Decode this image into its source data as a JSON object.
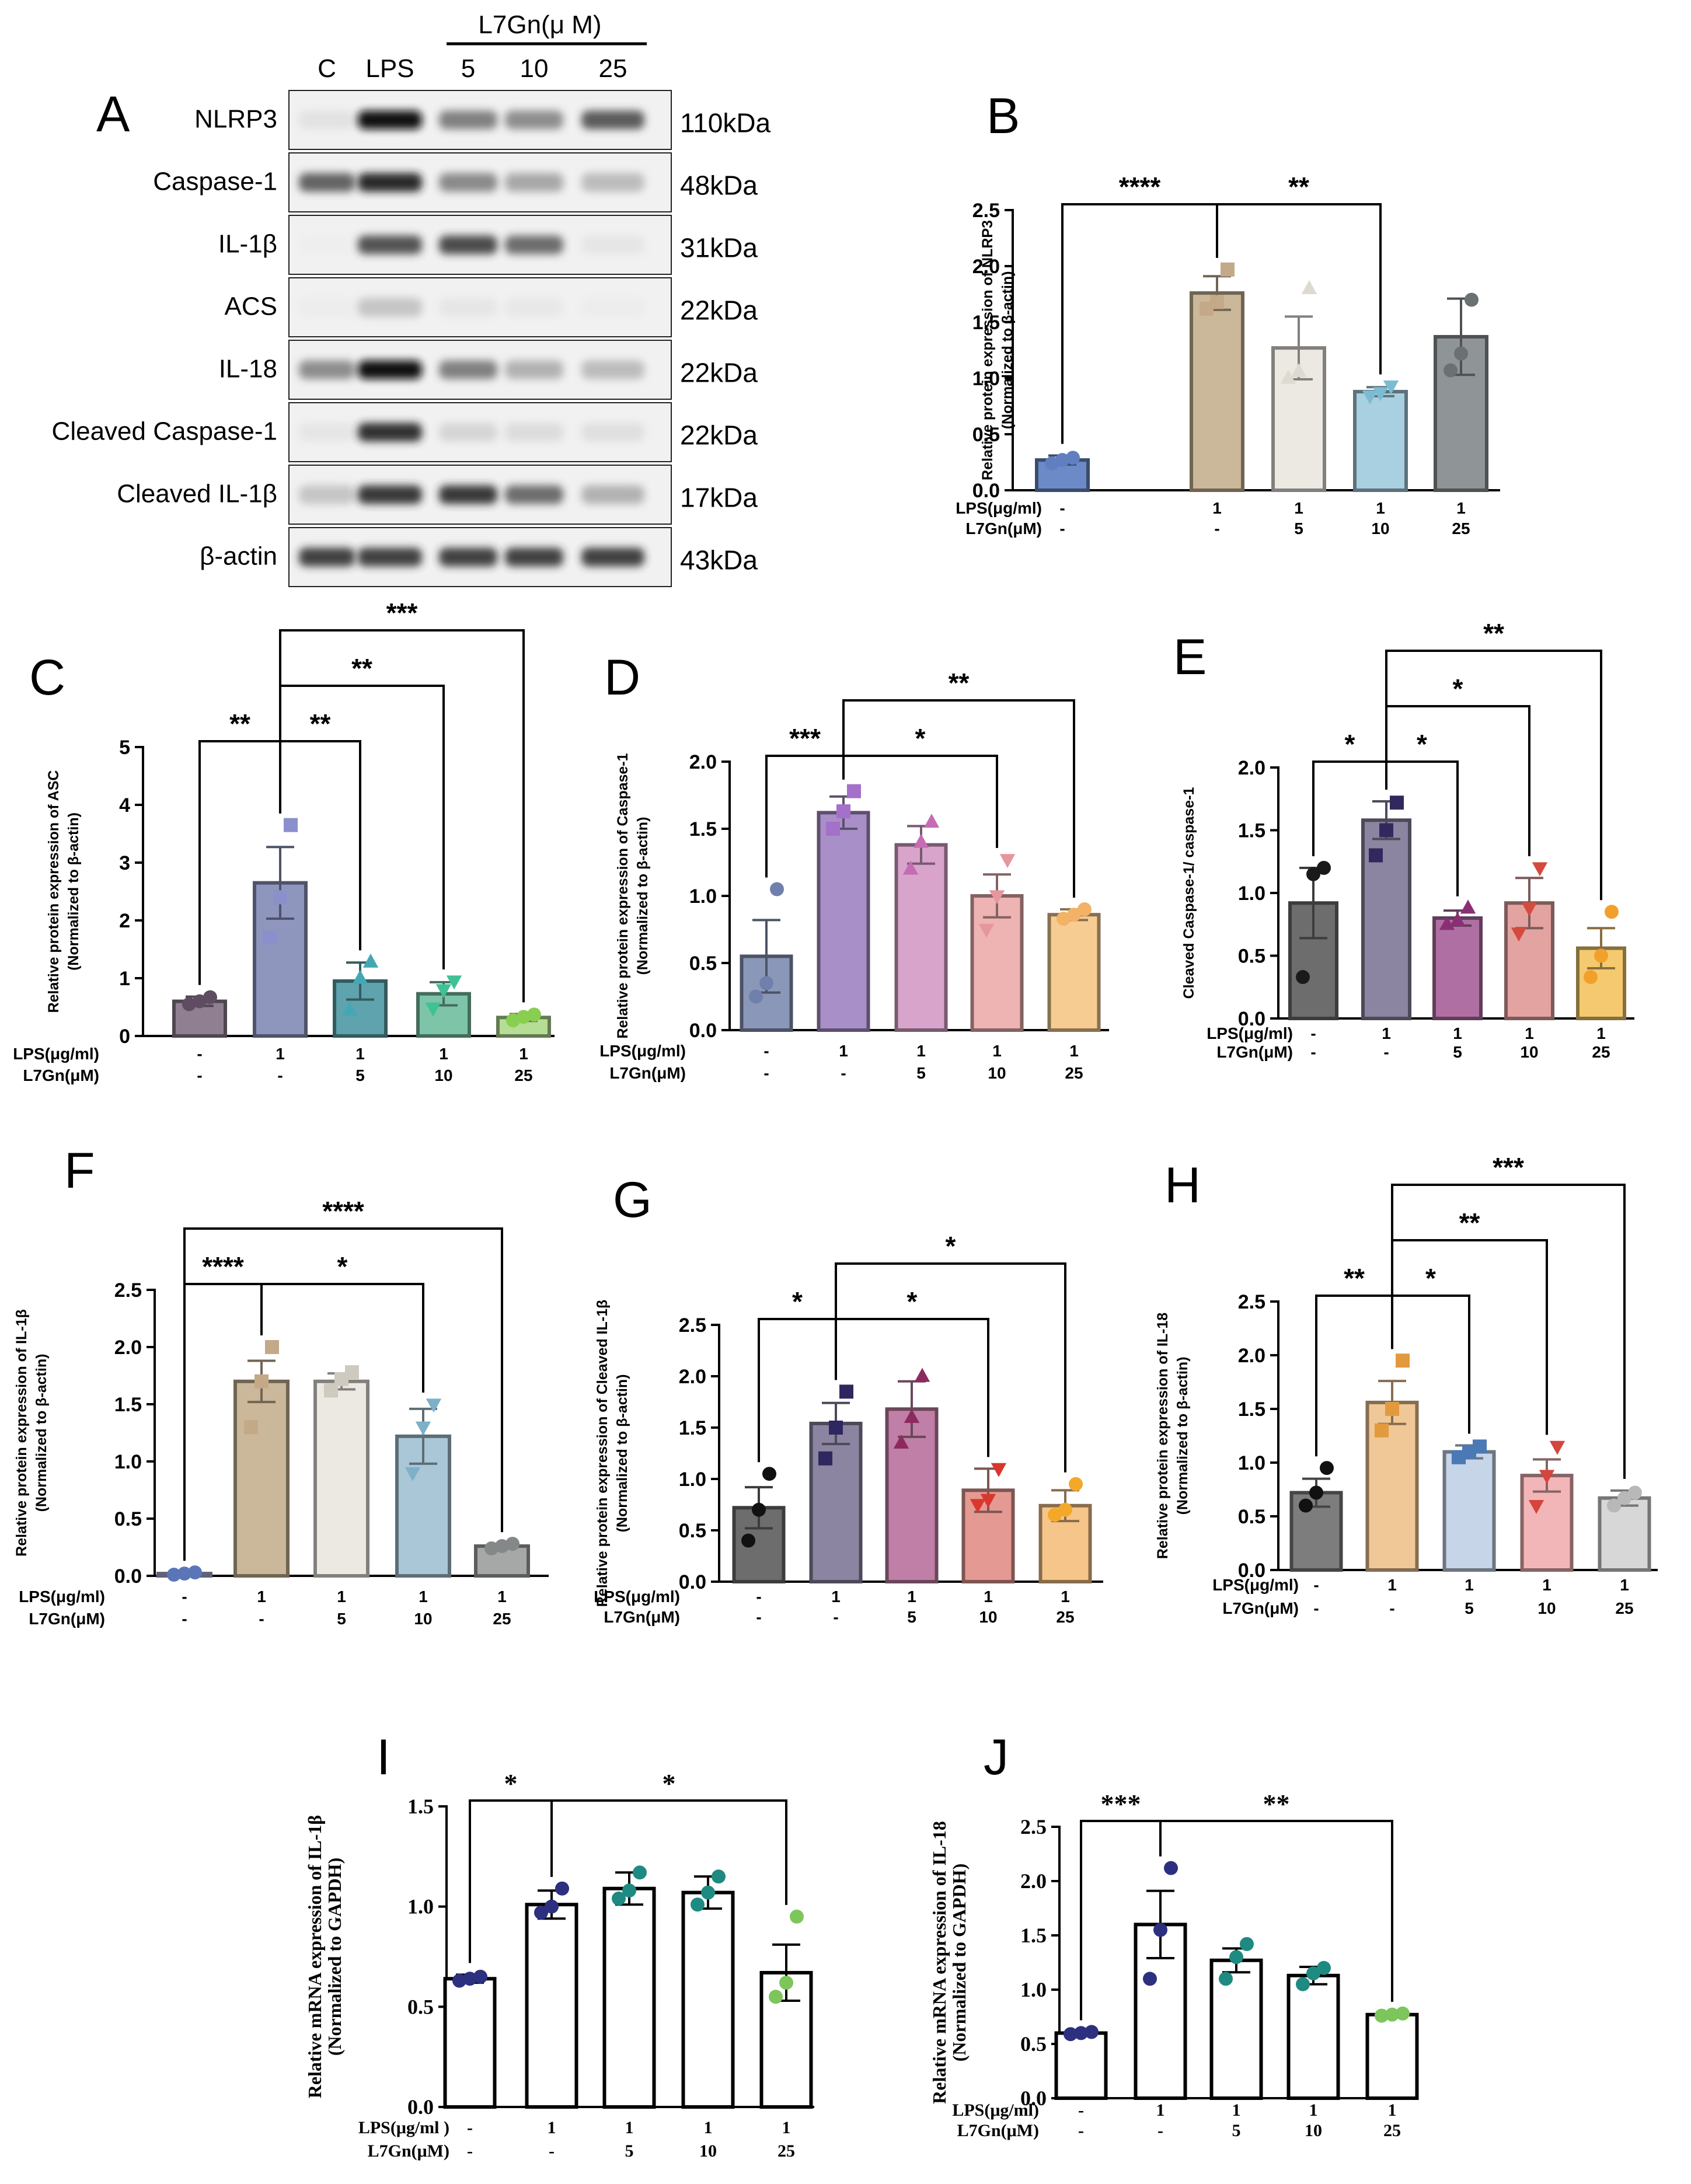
{
  "figure": {
    "panel_letters": [
      "A",
      "B",
      "C",
      "D",
      "E",
      "F",
      "G",
      "H",
      "I",
      "J"
    ]
  },
  "blot": {
    "lanes": [
      "C",
      "LPS",
      "5",
      "10",
      "25"
    ],
    "treatment_header": "L7Gn(μ M)",
    "rows": [
      {
        "protein": "NLRP3",
        "mw": "110kDa",
        "intensity": [
          0.15,
          0.98,
          0.65,
          0.6,
          0.78
        ]
      },
      {
        "protein": "Caspase-1",
        "mw": "48kDa",
        "intensity": [
          0.75,
          0.92,
          0.62,
          0.5,
          0.4
        ]
      },
      {
        "protein": "IL-1β",
        "mw": "31kDa",
        "intensity": [
          0.02,
          0.8,
          0.82,
          0.72,
          0.12
        ]
      },
      {
        "protein": "ACS",
        "mw": "22kDa",
        "intensity": [
          0.05,
          0.35,
          0.12,
          0.1,
          0.05
        ]
      },
      {
        "protein": "IL-18",
        "mw": "22kDa",
        "intensity": [
          0.6,
          0.98,
          0.65,
          0.45,
          0.4
        ]
      },
      {
        "protein": "Cleaved Caspase-1",
        "mw": "22kDa",
        "intensity": [
          0.12,
          0.9,
          0.25,
          0.2,
          0.18
        ]
      },
      {
        "protein": "Cleaved IL-1β",
        "mw": "17kDa",
        "intensity": [
          0.35,
          0.88,
          0.88,
          0.72,
          0.45
        ]
      },
      {
        "protein": "β-actin",
        "mw": "43kDa",
        "intensity": [
          0.85,
          0.85,
          0.85,
          0.85,
          0.85
        ]
      }
    ]
  },
  "colors": {
    "B": [
      "#6b8ac7",
      "#cbb799",
      "#ece9e2",
      "#a9d0e0",
      "#8f9496"
    ],
    "C": [
      "#8f7f91",
      "#8e96be",
      "#5ea3ad",
      "#7dc4a9",
      "#b5dd95"
    ],
    "D": [
      "#8a97b8",
      "#a98fc8",
      "#d8a4cc",
      "#eeb3b3",
      "#f7cc92"
    ],
    "E": [
      "#6d6d6d",
      "#8c85a1",
      "#b06fa3",
      "#e3a3a1",
      "#f5c96f"
    ],
    "F": [
      "#aab3d4",
      "#cbb799",
      "#ece9e2",
      "#a9c7d6",
      "#a6a8a8"
    ],
    "G": [
      "#6d6d6d",
      "#8c85a1",
      "#c07fa6",
      "#e49a93",
      "#f6c58a"
    ],
    "H": [
      "#7d7d7d",
      "#f0c796",
      "#c6d5e8",
      "#f3b6b8",
      "#d7d7d7"
    ],
    "B_markers": [
      "#5f7fc0",
      "#c4a988",
      "#dedad1",
      "#7cbcd3",
      "#6b7072"
    ],
    "C_markers": [
      "#5e4d60",
      "#8b8fcc",
      "#43a8b4",
      "#3fc195",
      "#89cf4f"
    ],
    "D_markers": [
      "#6f80ad",
      "#a371c9",
      "#c56cb3",
      "#e5979d",
      "#f3b265"
    ],
    "E_markers": [
      "#1a1a1a",
      "#33285e",
      "#8a2f74",
      "#d34b3f",
      "#f2a02b"
    ],
    "F_markers": [
      "#5a76b8",
      "#c4a988",
      "#cfcac0",
      "#7cb1c9",
      "#858888"
    ],
    "G_markers": [
      "#111111",
      "#2f2760",
      "#8c2a5f",
      "#d9372e",
      "#f4a82a"
    ],
    "H_markers": [
      "#111111",
      "#e29a3e",
      "#4a79b5",
      "#d4453d",
      "#b8b8b8"
    ],
    "I_markers": [
      "#2d2f7f",
      "#2d2f7f",
      "#1f8a82",
      "#1f8a82",
      "#7cc65b"
    ],
    "J_markers": [
      "#2d2f7f",
      "#2d2f7f",
      "#1f8a82",
      "#1f8a82",
      "#7cc65b"
    ]
  },
  "chart_data": [
    {
      "panel": "B",
      "type": "bar",
      "font": "sans",
      "ylabel": "Relative protein expression of NLRP3\n(Normalized to β-actin)",
      "ylim": [
        0,
        2.5
      ],
      "yticks": [
        "0.0",
        "0.5",
        "1.0",
        "1.5",
        "2.0",
        "2.5"
      ],
      "categories": [
        "1",
        "2",
        "3",
        "4",
        "5"
      ],
      "row_labels": [
        "LPS(μg/ml)",
        "L7Gn(μM)"
      ],
      "lps": [
        "-",
        "1",
        "1",
        "1",
        "1"
      ],
      "l7gn": [
        "-",
        "-",
        "5",
        "10",
        "25"
      ],
      "values": [
        0.27,
        1.76,
        1.27,
        0.88,
        1.37
      ],
      "errors": [
        0.04,
        0.15,
        0.28,
        0.04,
        0.34
      ],
      "points": [
        [
          0.24,
          0.27,
          0.29
        ],
        [
          1.62,
          1.68,
          1.97
        ],
        [
          1.0,
          1.06,
          1.8
        ],
        [
          0.84,
          0.87,
          0.93
        ],
        [
          1.07,
          1.22,
          1.7
        ]
      ],
      "markers": [
        "circle",
        "square",
        "triangle",
        "triangle-down",
        "circle"
      ],
      "significance": [
        {
          "from": 0,
          "to": 1,
          "label": "****",
          "level": 0
        },
        {
          "from": 1,
          "to": 3,
          "label": "**",
          "level": 0
        }
      ]
    },
    {
      "panel": "C",
      "type": "bar",
      "font": "sans",
      "ylabel": "Relative protein expression of ASC\n(Normalized to β-actin)",
      "ylim": [
        0,
        5
      ],
      "yticks": [
        "0",
        "1",
        "2",
        "3",
        "4",
        "5"
      ],
      "categories": [
        "1",
        "2",
        "3",
        "4",
        "5"
      ],
      "row_labels": [
        "LPS(μg/ml)",
        "L7Gn(μM)"
      ],
      "lps": [
        "-",
        "1",
        "1",
        "1",
        "1"
      ],
      "l7gn": [
        "-",
        "-",
        "5",
        "10",
        "25"
      ],
      "values": [
        0.6,
        2.65,
        0.95,
        0.73,
        0.32
      ],
      "errors": [
        0.08,
        0.62,
        0.32,
        0.2,
        0.06
      ],
      "points": [
        [
          0.55,
          0.6,
          0.67
        ],
        [
          1.7,
          2.4,
          3.65
        ],
        [
          0.45,
          1.0,
          1.28
        ],
        [
          0.48,
          0.8,
          0.95
        ],
        [
          0.27,
          0.33,
          0.37
        ]
      ],
      "markers": [
        "circle",
        "square",
        "triangle",
        "triangle-down",
        "circle"
      ],
      "significance": [
        {
          "from": 0,
          "to": 1,
          "label": "**",
          "level": 0
        },
        {
          "from": 1,
          "to": 2,
          "label": "**",
          "level": 0
        },
        {
          "from": 1,
          "to": 3,
          "label": "**",
          "level": 1
        },
        {
          "from": 1,
          "to": 4,
          "label": "***",
          "level": 2
        }
      ]
    },
    {
      "panel": "D",
      "type": "bar",
      "font": "sans",
      "ylabel": "Relative protein expression of Caspase-1\n(Normalized to β-actin)",
      "ylim": [
        0,
        2.0
      ],
      "yticks": [
        "0.0",
        "0.5",
        "1.0",
        "1.5",
        "2.0"
      ],
      "categories": [
        "1",
        "2",
        "3",
        "4",
        "5"
      ],
      "row_labels": [
        "LPS(μg/ml)",
        "L7Gn(μM)"
      ],
      "lps": [
        "-",
        "1",
        "1",
        "1",
        "1"
      ],
      "l7gn": [
        "-",
        "-",
        "5",
        "10",
        "25"
      ],
      "values": [
        0.55,
        1.62,
        1.38,
        1.0,
        0.86
      ],
      "errors": [
        0.27,
        0.12,
        0.14,
        0.16,
        0.04
      ],
      "points": [
        [
          0.25,
          0.35,
          1.05
        ],
        [
          1.5,
          1.63,
          1.78
        ],
        [
          1.2,
          1.4,
          1.55
        ],
        [
          0.75,
          1.0,
          1.27
        ],
        [
          0.83,
          0.86,
          0.9
        ]
      ],
      "markers": [
        "circle",
        "square",
        "triangle",
        "triangle-down",
        "circle"
      ],
      "significance": [
        {
          "from": 0,
          "to": 1,
          "label": "***",
          "level": 0
        },
        {
          "from": 1,
          "to": 3,
          "label": "*",
          "level": 0
        },
        {
          "from": 1,
          "to": 4,
          "label": "**",
          "level": 1
        }
      ]
    },
    {
      "panel": "E",
      "type": "bar",
      "font": "sans",
      "ylabel": "Cleaved Caspase-1/ caspase-1",
      "ylim": [
        0,
        2.0
      ],
      "yticks": [
        "0.0",
        "0.5",
        "1.0",
        "1.5",
        "2.0"
      ],
      "categories": [
        "1",
        "2",
        "3",
        "4",
        "5"
      ],
      "row_labels": [
        "LPS(μg/ml)",
        "L7Gn(μM)"
      ],
      "lps": [
        "-",
        "1",
        "1",
        "1",
        "1"
      ],
      "l7gn": [
        "-",
        "-",
        "5",
        "10",
        "25"
      ],
      "values": [
        0.92,
        1.58,
        0.8,
        0.92,
        0.56
      ],
      "errors": [
        0.28,
        0.15,
        0.06,
        0.2,
        0.16
      ],
      "points": [
        [
          0.33,
          1.15,
          1.2
        ],
        [
          1.3,
          1.5,
          1.72
        ],
        [
          0.75,
          0.78,
          0.88
        ],
        [
          0.68,
          0.88,
          1.2
        ],
        [
          0.33,
          0.5,
          0.85
        ]
      ],
      "markers": [
        "circle",
        "square",
        "triangle",
        "triangle-down",
        "circle"
      ],
      "significance": [
        {
          "from": 0,
          "to": 1,
          "label": "*",
          "level": 0
        },
        {
          "from": 1,
          "to": 2,
          "label": "*",
          "level": 0
        },
        {
          "from": 1,
          "to": 3,
          "label": "*",
          "level": 1
        },
        {
          "from": 1,
          "to": 4,
          "label": "**",
          "level": 2
        }
      ]
    },
    {
      "panel": "F",
      "type": "bar",
      "font": "sans",
      "ylabel": "Relative protein expression of IL-1β\n(Normalized to β-actin)",
      "ylim": [
        0,
        2.5
      ],
      "yticks": [
        "0.0",
        "0.5",
        "1.0",
        "1.5",
        "2.0",
        "2.5"
      ],
      "categories": [
        "1",
        "2",
        "3",
        "4",
        "5"
      ],
      "row_labels": [
        "LPS(μg/ml)",
        "L7Gn(μM)"
      ],
      "lps": [
        "-",
        "1",
        "1",
        "1",
        "1"
      ],
      "l7gn": [
        "-",
        "-",
        "5",
        "10",
        "25"
      ],
      "values": [
        0.02,
        1.7,
        1.7,
        1.22,
        0.26
      ],
      "errors": [
        0.01,
        0.18,
        0.07,
        0.24,
        0.02
      ],
      "points": [
        [
          0.01,
          0.02,
          0.03
        ],
        [
          1.3,
          1.7,
          2.0
        ],
        [
          1.62,
          1.72,
          1.78
        ],
        [
          0.9,
          1.3,
          1.5
        ],
        [
          0.24,
          0.26,
          0.28
        ]
      ],
      "markers": [
        "circle",
        "square",
        "square",
        "triangle-down",
        "circle"
      ],
      "significance": [
        {
          "from": 0,
          "to": 1,
          "label": "****",
          "level": 0
        },
        {
          "from": 1,
          "to": 3,
          "label": "*",
          "level": 0
        },
        {
          "from": 0,
          "to": 4,
          "label": "****",
          "level": 1
        }
      ]
    },
    {
      "panel": "G",
      "type": "bar",
      "font": "sans",
      "ylabel": "Relative protein expression of Cleaved IL-1β\n(Normalized to β-actin)",
      "ylim": [
        0,
        2.5
      ],
      "yticks": [
        "0.0",
        "0.5",
        "1.0",
        "1.5",
        "2.0",
        "2.5"
      ],
      "categories": [
        "1",
        "2",
        "3",
        "4",
        "5"
      ],
      "row_labels": [
        "LPS(μg/ml)",
        "L7Gn(μM)"
      ],
      "lps": [
        "-",
        "1",
        "1",
        "1",
        "1"
      ],
      "l7gn": [
        "-",
        "-",
        "5",
        "10",
        "25"
      ],
      "values": [
        0.72,
        1.54,
        1.68,
        0.89,
        0.74
      ],
      "errors": [
        0.2,
        0.2,
        0.27,
        0.21,
        0.15
      ],
      "points": [
        [
          0.4,
          0.7,
          1.05
        ],
        [
          1.2,
          1.5,
          1.85
        ],
        [
          1.35,
          1.6,
          2.0
        ],
        [
          0.75,
          0.8,
          1.1
        ],
        [
          0.65,
          0.7,
          0.95
        ]
      ],
      "markers": [
        "circle",
        "square",
        "triangle",
        "triangle-down",
        "circle"
      ],
      "significance": [
        {
          "from": 0,
          "to": 1,
          "label": "*",
          "level": 0
        },
        {
          "from": 1,
          "to": 3,
          "label": "*",
          "level": 0
        },
        {
          "from": 1,
          "to": 4,
          "label": "*",
          "level": 1
        }
      ]
    },
    {
      "panel": "H",
      "type": "bar",
      "font": "sans",
      "ylabel": "Relative protein expression of IL-18\n(Normalized to β-actin)",
      "ylim": [
        0,
        2.5
      ],
      "yticks": [
        "0.0",
        "0.5",
        "1.0",
        "1.5",
        "2.0",
        "2.5"
      ],
      "categories": [
        "1",
        "2",
        "3",
        "4",
        "5"
      ],
      "row_labels": [
        "LPS(μg/ml)",
        "L7Gn(μM)"
      ],
      "lps": [
        "-",
        "1",
        "1",
        "1",
        "1"
      ],
      "l7gn": [
        "-",
        "-",
        "5",
        "10",
        "25"
      ],
      "values": [
        0.72,
        1.56,
        1.1,
        0.88,
        0.67
      ],
      "errors": [
        0.13,
        0.2,
        0.06,
        0.15,
        0.07
      ],
      "points": [
        [
          0.6,
          0.72,
          0.95
        ],
        [
          1.3,
          1.5,
          1.95
        ],
        [
          1.05,
          1.1,
          1.15
        ],
        [
          0.6,
          0.88,
          1.15
        ],
        [
          0.6,
          0.67,
          0.72
        ]
      ],
      "markers": [
        "circle",
        "square",
        "square",
        "triangle-down",
        "circle"
      ],
      "significance": [
        {
          "from": 0,
          "to": 1,
          "label": "**",
          "level": 0
        },
        {
          "from": 1,
          "to": 2,
          "label": "*",
          "level": 0
        },
        {
          "from": 1,
          "to": 3,
          "label": "**",
          "level": 1
        },
        {
          "from": 1,
          "to": 4,
          "label": "***",
          "level": 2
        }
      ]
    },
    {
      "panel": "I",
      "type": "bar",
      "font": "serif",
      "ylabel": "Relative mRNA expression of IL-1β\n(Normalized to GAPDH)",
      "ylim": [
        0,
        1.5
      ],
      "yticks": [
        "0.0",
        "0.5",
        "1.0",
        "1.5"
      ],
      "categories": [
        "1",
        "2",
        "3",
        "4",
        "5"
      ],
      "row_labels": [
        "LPS(μg/ml )",
        "L7Gn(μM)"
      ],
      "lps": [
        "-",
        "1",
        "1",
        "1",
        "1"
      ],
      "l7gn": [
        "-",
        "-",
        "5",
        "10",
        "25"
      ],
      "values": [
        0.64,
        1.01,
        1.09,
        1.07,
        0.67
      ],
      "errors": [
        0.02,
        0.07,
        0.08,
        0.08,
        0.14
      ],
      "points": [
        [
          0.63,
          0.64,
          0.65
        ],
        [
          0.97,
          1.0,
          1.09
        ],
        [
          1.04,
          1.08,
          1.17
        ],
        [
          1.01,
          1.07,
          1.15
        ],
        [
          0.55,
          0.62,
          0.95
        ]
      ],
      "markers": [
        "circle",
        "circle",
        "circle",
        "circle",
        "circle"
      ],
      "significance": [
        {
          "from": 0,
          "to": 1,
          "label": "*",
          "level": 0
        },
        {
          "from": 1,
          "to": 4,
          "label": "*",
          "level": 0
        }
      ]
    },
    {
      "panel": "J",
      "type": "bar",
      "font": "serif",
      "ylabel": "Relative mRNA expression of IL-18\n(Normalized to GAPDH)",
      "ylim": [
        0,
        2.5
      ],
      "yticks": [
        "0.0",
        "0.5",
        "1.0",
        "1.5",
        "2.0",
        "2.5"
      ],
      "categories": [
        "1",
        "2",
        "3",
        "4",
        "5"
      ],
      "row_labels": [
        "LPS(μg/ml)",
        "L7Gn(μM)"
      ],
      "lps": [
        "-",
        "1",
        "1",
        "1",
        "1"
      ],
      "l7gn": [
        "-",
        "-",
        "5",
        "10",
        "25"
      ],
      "values": [
        0.6,
        1.6,
        1.27,
        1.13,
        0.77
      ],
      "errors": [
        0.01,
        0.31,
        0.11,
        0.08,
        0.01
      ],
      "points": [
        [
          0.59,
          0.6,
          0.61
        ],
        [
          1.1,
          1.55,
          2.12
        ],
        [
          1.1,
          1.3,
          1.42
        ],
        [
          1.05,
          1.15,
          1.2
        ],
        [
          0.76,
          0.77,
          0.78
        ]
      ],
      "markers": [
        "circle",
        "circle",
        "circle",
        "circle",
        "circle"
      ],
      "significance": [
        {
          "from": 0,
          "to": 1,
          "label": "***",
          "level": 0
        },
        {
          "from": 1,
          "to": 4,
          "label": "**",
          "level": 0
        }
      ]
    }
  ]
}
